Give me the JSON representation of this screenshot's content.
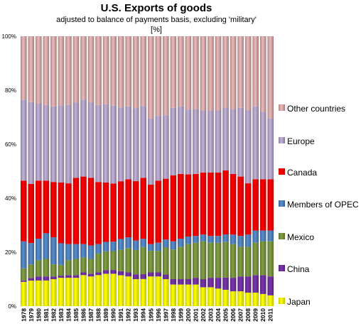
{
  "chart_data": {
    "type": "bar",
    "stacked": true,
    "percent_stacked": true,
    "title": "U.S. Exports of goods",
    "subtitle": "adjusted to balance of payments basis, excluding 'military'",
    "unit_label": "[%]",
    "ylim": [
      0,
      100
    ],
    "y_ticks": [
      "0%",
      "20%",
      "40%",
      "60%",
      "80%",
      "100%"
    ],
    "grid": false,
    "legend_position": "right",
    "categories": [
      "1978",
      "1979",
      "1980",
      "1981",
      "1982",
      "1983",
      "1984",
      "1985",
      "1986",
      "1987",
      "1988",
      "1989",
      "1990",
      "1991",
      "1992",
      "1993",
      "1994",
      "1995",
      "1996",
      "1997",
      "1998",
      "1999",
      "2000",
      "2001",
      "2002",
      "2003",
      "2004",
      "2005",
      "2006",
      "2007",
      "2008",
      "2009",
      "2010",
      "2011"
    ],
    "series": [
      {
        "name": "Japan",
        "color": "#ffff00",
        "values": [
          9,
          9.5,
          9.5,
          9.5,
          10,
          10.5,
          10.5,
          10.5,
          11.5,
          11,
          11.5,
          12,
          12,
          11.5,
          11,
          10,
          10,
          11,
          11,
          10,
          8,
          8,
          8,
          8,
          7,
          7,
          6.5,
          6,
          5.5,
          5.5,
          5,
          5,
          4.5,
          4
        ]
      },
      {
        "name": "China",
        "color": "#7030a0",
        "values": [
          0.5,
          1,
          1.5,
          1.5,
          1,
          0.8,
          1,
          1,
          1,
          1,
          1,
          1.3,
          1.4,
          1.5,
          1.5,
          1.8,
          1.8,
          1.5,
          1.5,
          1.7,
          2,
          2,
          2,
          2.5,
          3,
          3.5,
          4,
          4.5,
          5,
          5.5,
          6,
          6.5,
          7,
          7
        ]
      },
      {
        "name": "Mexico",
        "color": "#76923c",
        "values": [
          4.5,
          5,
          6,
          6.5,
          4.5,
          4,
          5.5,
          6,
          5.5,
          5.5,
          7,
          7,
          7,
          8,
          9,
          9,
          10,
          8,
          8,
          10,
          11,
          12,
          13,
          13,
          14,
          13,
          13,
          13,
          12.5,
          11,
          11,
          12,
          12.5,
          13
        ]
      },
      {
        "name": "Members of OPEC",
        "color": "#4f81bd",
        "values": [
          10,
          8,
          8,
          9.5,
          10,
          8,
          6,
          5.5,
          5,
          5,
          3.5,
          3.5,
          3.5,
          4,
          4,
          3.5,
          3,
          2.5,
          3,
          3,
          3,
          3,
          2.8,
          2.5,
          2.5,
          2.5,
          2.5,
          2.8,
          3.5,
          4,
          4.5,
          4.5,
          4,
          4
        ]
      },
      {
        "name": "Canada",
        "color": "#ff0000",
        "values": [
          22.5,
          22,
          21.5,
          19.5,
          20.5,
          22.5,
          22.5,
          24.5,
          25,
          25,
          23,
          22,
          21.5,
          21.5,
          21.5,
          22,
          22.5,
          22,
          23,
          22.5,
          24.5,
          24,
          23,
          23,
          23,
          23.5,
          23.5,
          23.5,
          22.5,
          22,
          19,
          19,
          19,
          19
        ]
      },
      {
        "name": "Europe",
        "color": "#b3a2c7",
        "values": [
          30,
          30.5,
          28.5,
          28,
          28,
          28.5,
          29,
          28,
          28.5,
          28,
          28.5,
          29,
          29,
          27.5,
          27,
          27,
          26.5,
          24.5,
          24,
          23.5,
          25,
          25,
          24,
          24,
          23,
          23,
          23,
          23,
          24,
          25.5,
          27,
          27,
          25,
          22.5
        ]
      },
      {
        "name": "Other countries",
        "color": "#d8a9a9",
        "values": [
          23.5,
          24.5,
          25,
          25.5,
          26,
          25.7,
          25.5,
          24.5,
          23.5,
          24.5,
          25.5,
          25.2,
          25.6,
          26.5,
          26,
          26.7,
          25.7,
          30.5,
          29.5,
          29.3,
          26.5,
          26,
          27.2,
          27,
          27.5,
          27.5,
          27.5,
          26.2,
          27,
          26.5,
          27.5,
          26,
          28,
          30.5
        ]
      }
    ]
  }
}
